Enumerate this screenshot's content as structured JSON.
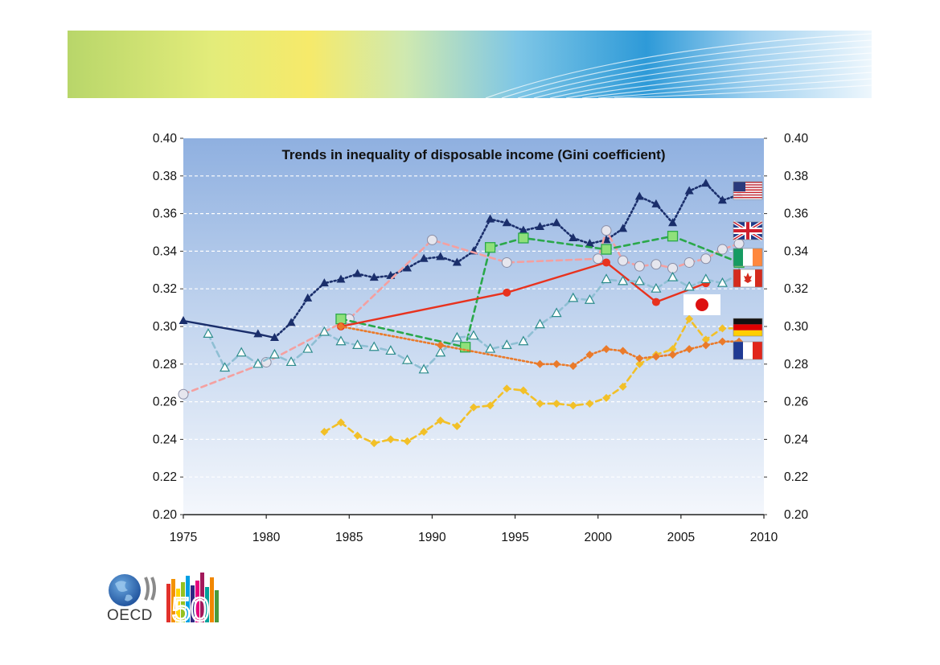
{
  "logo": {
    "org": "OECD",
    "anniversary": "50"
  },
  "colors": {
    "usa": "#1a2e6b",
    "uk": "#f4a0a0",
    "ireland": "#2aa84a",
    "canada": "#e8321e",
    "japan": "#8fbfd4",
    "germany": "#f2c028",
    "france": "#ea7a2a"
  },
  "chart_data": {
    "type": "line",
    "title": "Trends in inequality of disposable income (Gini coefficient)",
    "xlim": [
      1975,
      2010
    ],
    "ylim": [
      0.2,
      0.4
    ],
    "x_ticks": [
      "1975",
      "1980",
      "1985",
      "1990",
      "1995",
      "2000",
      "2005",
      "2010"
    ],
    "y_ticks": [
      "0.40",
      "0.38",
      "0.36",
      "0.34",
      "0.32",
      "0.30",
      "0.28",
      "0.26",
      "0.24",
      "0.22",
      "0.20"
    ],
    "grid": true,
    "flags": [
      "United States",
      "United Kingdom",
      "Ireland",
      "Canada",
      "Japan",
      "Germany",
      "France"
    ],
    "series": [
      {
        "key": "usa",
        "marker": "triangle-filled",
        "segments": [
          {
            "style": "solid",
            "points": [
              [
                1975,
                0.303
              ],
              [
                1979.5,
                0.296
              ],
              [
                1980.5,
                0.294
              ]
            ]
          },
          {
            "style": "dotted",
            "points": [
              [
                1980.5,
                0.294
              ],
              [
                1981.5,
                0.302
              ],
              [
                1982.5,
                0.315
              ],
              [
                1983.5,
                0.323
              ],
              [
                1984.5,
                0.325
              ],
              [
                1985.5,
                0.328
              ],
              [
                1986.5,
                0.326
              ],
              [
                1987.5,
                0.327
              ],
              [
                1988.5,
                0.331
              ],
              [
                1989.5,
                0.336
              ],
              [
                1990.5,
                0.337
              ],
              [
                1991.5,
                0.334
              ],
              [
                1992.5,
                0.34
              ],
              [
                1993.5,
                0.357
              ],
              [
                1994.5,
                0.355
              ],
              [
                1995.5,
                0.351
              ],
              [
                1996.5,
                0.353
              ],
              [
                1997.5,
                0.355
              ],
              [
                1998.5,
                0.347
              ],
              [
                1999.5,
                0.344
              ],
              [
                2000.5,
                0.346
              ],
              [
                2001.5,
                0.352
              ],
              [
                2002.5,
                0.369
              ],
              [
                2003.5,
                0.365
              ],
              [
                2004.5,
                0.355
              ],
              [
                2005.5,
                0.372
              ],
              [
                2006.5,
                0.376
              ],
              [
                2007.5,
                0.367
              ],
              [
                2008.5,
                0.37
              ]
            ]
          }
        ]
      },
      {
        "key": "uk",
        "marker": "circle-open",
        "segments": [
          {
            "style": "dashed",
            "points": [
              [
                1975,
                0.264
              ],
              [
                1980,
                0.281
              ],
              [
                1985,
                0.304
              ],
              [
                1990,
                0.346
              ],
              [
                1994.5,
                0.334
              ],
              [
                2000,
                0.336
              ],
              [
                2000.5,
                0.351
              ],
              [
                2001.5,
                0.335
              ],
              [
                2002.5,
                0.332
              ],
              [
                2003.5,
                0.333
              ],
              [
                2004.5,
                0.331
              ],
              [
                2005.5,
                0.334
              ],
              [
                2006.5,
                0.336
              ],
              [
                2007.5,
                0.341
              ],
              [
                2008.5,
                0.344
              ]
            ]
          }
        ]
      },
      {
        "key": "ireland",
        "marker": "square",
        "segments": [
          {
            "style": "dashed",
            "points": [
              [
                1984.5,
                0.304
              ],
              [
                1992,
                0.289
              ],
              [
                1993.5,
                0.342
              ],
              [
                1995.5,
                0.347
              ],
              [
                2000.5,
                0.341
              ],
              [
                2004.5,
                0.348
              ],
              [
                2008.5,
                0.334
              ]
            ]
          }
        ]
      },
      {
        "key": "canada",
        "marker": "circle-filled",
        "segments": [
          {
            "style": "solid",
            "points": [
              [
                1984.5,
                0.3
              ],
              [
                1994.5,
                0.318
              ],
              [
                2000.5,
                0.334
              ],
              [
                2003.5,
                0.313
              ],
              [
                2006.5,
                0.323
              ]
            ]
          }
        ]
      },
      {
        "key": "japan",
        "marker": "triangle-open",
        "segments": [
          {
            "style": "dashed",
            "points": [
              [
                1976.5,
                0.296
              ],
              [
                1977.5,
                0.278
              ],
              [
                1978.5,
                0.286
              ],
              [
                1979.5,
                0.28
              ],
              [
                1980.5,
                0.285
              ],
              [
                1981.5,
                0.281
              ],
              [
                1982.5,
                0.288
              ],
              [
                1983.5,
                0.297
              ],
              [
                1984.5,
                0.292
              ],
              [
                1985.5,
                0.29
              ],
              [
                1986.5,
                0.289
              ],
              [
                1987.5,
                0.287
              ],
              [
                1988.5,
                0.282
              ],
              [
                1989.5,
                0.277
              ],
              [
                1990.5,
                0.286
              ],
              [
                1991.5,
                0.294
              ],
              [
                1992.5,
                0.295
              ],
              [
                1993.5,
                0.288
              ],
              [
                1994.5,
                0.29
              ],
              [
                1995.5,
                0.292
              ],
              [
                1996.5,
                0.301
              ],
              [
                1997.5,
                0.307
              ],
              [
                1998.5,
                0.315
              ],
              [
                1999.5,
                0.314
              ],
              [
                2000.5,
                0.325
              ],
              [
                2001.5,
                0.324
              ],
              [
                2002.5,
                0.324
              ],
              [
                2003.5,
                0.32
              ],
              [
                2004.5,
                0.326
              ],
              [
                2005.5,
                0.321
              ],
              [
                2006.5,
                0.325
              ],
              [
                2007.5,
                0.323
              ],
              [
                2008.5,
                0.328
              ]
            ]
          }
        ]
      },
      {
        "key": "germany",
        "marker": "diamond",
        "segments": [
          {
            "style": "dashed",
            "points": [
              [
                1983.5,
                0.244
              ],
              [
                1984.5,
                0.249
              ],
              [
                1985.5,
                0.242
              ],
              [
                1986.5,
                0.238
              ],
              [
                1987.5,
                0.24
              ],
              [
                1988.5,
                0.239
              ],
              [
                1989.5,
                0.244
              ],
              [
                1990.5,
                0.25
              ],
              [
                1991.5,
                0.247
              ],
              [
                1992.5,
                0.257
              ],
              [
                1993.5,
                0.258
              ],
              [
                1994.5,
                0.267
              ],
              [
                1995.5,
                0.266
              ],
              [
                1996.5,
                0.259
              ],
              [
                1997.5,
                0.259
              ],
              [
                1998.5,
                0.258
              ],
              [
                1999.5,
                0.259
              ],
              [
                2000.5,
                0.262
              ],
              [
                2001.5,
                0.268
              ],
              [
                2002.5,
                0.28
              ],
              [
                2003.5,
                0.285
              ],
              [
                2004.5,
                0.288
              ],
              [
                2005.5,
                0.304
              ],
              [
                2006.5,
                0.293
              ],
              [
                2007.5,
                0.299
              ],
              [
                2008.5,
                0.299
              ]
            ]
          }
        ]
      },
      {
        "key": "france",
        "marker": "diamond",
        "segments": [
          {
            "style": "dotted",
            "points": [
              [
                1984.5,
                0.3
              ],
              [
                1990.5,
                0.29
              ],
              [
                1996.5,
                0.28
              ],
              [
                1997.5,
                0.28
              ],
              [
                1998.5,
                0.279
              ],
              [
                1999.5,
                0.285
              ],
              [
                2000.5,
                0.288
              ],
              [
                2001.5,
                0.287
              ],
              [
                2002.5,
                0.283
              ],
              [
                2003.5,
                0.284
              ],
              [
                2004.5,
                0.285
              ],
              [
                2005.5,
                0.288
              ],
              [
                2006.5,
                0.29
              ],
              [
                2007.5,
                0.292
              ],
              [
                2008.5,
                0.292
              ]
            ]
          }
        ]
      }
    ]
  }
}
